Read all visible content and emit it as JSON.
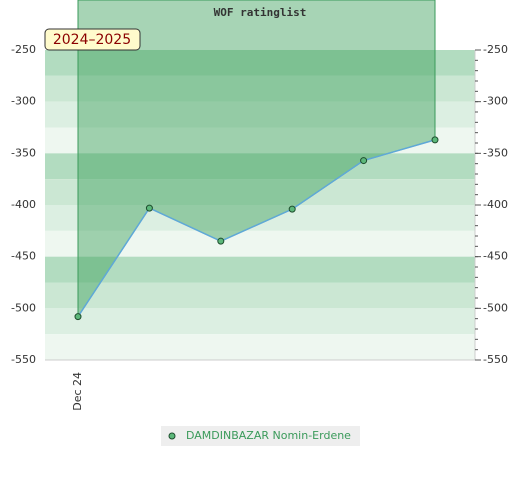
{
  "chart_data": {
    "type": "line",
    "title": "WOF ratinglist",
    "season": "2024–2025",
    "categories": [
      "Dec 24",
      null,
      null,
      null,
      null,
      null
    ],
    "series": [
      {
        "name": "DAMDINBAZAR Nomin-Erdene",
        "color": "#5fa8d8",
        "values": [
          -508,
          -403,
          -435,
          -404,
          -357,
          -337
        ]
      }
    ],
    "ylim": [
      -550,
      -250
    ],
    "yticks": [
      -550,
      -500,
      -450,
      -400,
      -350,
      -300,
      -250
    ],
    "y2lim": [
      -550,
      -250
    ],
    "y2ticks": [
      -550,
      -500,
      -450,
      -400,
      -350,
      -300,
      -250
    ]
  }
}
